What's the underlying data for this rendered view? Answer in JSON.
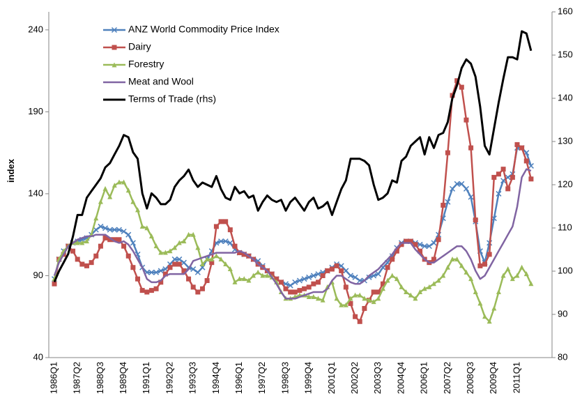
{
  "chart_data": {
    "type": "line",
    "y_label": "index",
    "categories": [
      "1986Q1",
      null,
      null,
      null,
      null,
      "1987Q2",
      null,
      null,
      null,
      null,
      "1988Q3",
      null,
      null,
      null,
      null,
      "1989Q4",
      null,
      null,
      null,
      null,
      "1991Q1",
      null,
      null,
      null,
      null,
      "1992Q2",
      null,
      null,
      null,
      null,
      "1993Q3",
      null,
      null,
      null,
      null,
      "1994Q4",
      null,
      null,
      null,
      null,
      "1996Q1",
      null,
      null,
      null,
      null,
      "1997Q2",
      null,
      null,
      null,
      null,
      "1998Q3",
      null,
      null,
      null,
      null,
      "1999Q4",
      null,
      null,
      null,
      null,
      "2001Q1",
      null,
      null,
      null,
      null,
      "2002Q2",
      null,
      null,
      null,
      null,
      "2003Q3",
      null,
      null,
      null,
      null,
      "2004Q4",
      null,
      null,
      null,
      null,
      "2006Q1",
      null,
      null,
      null,
      null,
      "2007Q2",
      null,
      null,
      null,
      null,
      "2008Q3",
      null,
      null,
      null,
      null,
      "2009Q4",
      null,
      null,
      null,
      null,
      "2011Q1",
      null,
      null,
      null
    ],
    "ylim": [
      40,
      251
    ],
    "yticks": [
      40,
      90,
      140,
      190,
      240
    ],
    "y2lim": [
      80,
      160
    ],
    "y2ticks": [
      80,
      90,
      100,
      110,
      120,
      130,
      140,
      150,
      160
    ],
    "legend": "upper-left",
    "series": [
      {
        "name": "ANZ World Commodity Price Index",
        "color": "#4f81bd",
        "marker": "x",
        "values": [
          88,
          100,
          105,
          108,
          110,
          111,
          112,
          113,
          115,
          118,
          120,
          119,
          118,
          118,
          118,
          117,
          115,
          110,
          103,
          95,
          92,
          92,
          92,
          93,
          94,
          97,
          100,
          100,
          98,
          95,
          94,
          92,
          95,
          100,
          105,
          110,
          111,
          111,
          110,
          106,
          104,
          103,
          102,
          100,
          99,
          96,
          93,
          91,
          88,
          86,
          85,
          84,
          86,
          87,
          88,
          89,
          90,
          91,
          92,
          93,
          95,
          97,
          96,
          93,
          90,
          89,
          87,
          87,
          89,
          90,
          91,
          95,
          98,
          102,
          107,
          110,
          111,
          111,
          110,
          109,
          108,
          108,
          110,
          115,
          125,
          135,
          143,
          146,
          146,
          143,
          138,
          123,
          105,
          98,
          110,
          125,
          140,
          148,
          150,
          152,
          168,
          168,
          165,
          157
        ]
      },
      {
        "name": "Dairy",
        "color": "#c0504d",
        "marker": "square",
        "values": [
          85,
          100,
          103,
          108,
          105,
          100,
          97,
          96,
          98,
          102,
          108,
          113,
          112,
          112,
          112,
          108,
          102,
          95,
          88,
          81,
          80,
          81,
          82,
          86,
          91,
          95,
          97,
          97,
          93,
          88,
          83,
          80,
          82,
          87,
          98,
          120,
          123,
          123,
          118,
          108,
          104,
          103,
          102,
          100,
          97,
          95,
          93,
          91,
          88,
          86,
          82,
          80,
          80,
          81,
          82,
          83,
          85,
          86,
          90,
          93,
          94,
          96,
          93,
          83,
          73,
          65,
          62,
          70,
          75,
          80,
          80,
          85,
          95,
          100,
          105,
          109,
          111,
          111,
          109,
          105,
          100,
          98,
          100,
          112,
          133,
          165,
          200,
          209,
          205,
          185,
          168,
          124,
          96,
          97,
          103,
          150,
          152,
          155,
          143,
          150,
          170,
          168,
          160,
          149
        ]
      },
      {
        "name": "Forestry",
        "color": "#9bbb59",
        "marker": "triangle",
        "values": [
          88,
          100,
          105,
          108,
          110,
          110,
          110,
          111,
          115,
          125,
          135,
          143,
          138,
          145,
          147,
          147,
          142,
          135,
          130,
          120,
          119,
          114,
          108,
          104,
          104,
          105,
          107,
          110,
          111,
          115,
          115,
          107,
          97,
          100,
          100,
          102,
          100,
          97,
          94,
          86,
          88,
          88,
          87,
          90,
          92,
          90,
          90,
          89,
          86,
          80,
          76,
          76,
          77,
          78,
          78,
          77,
          77,
          76,
          75,
          83,
          86,
          76,
          72,
          72,
          76,
          78,
          78,
          76,
          75,
          74,
          76,
          82,
          87,
          90,
          88,
          83,
          80,
          78,
          76,
          80,
          82,
          83,
          85,
          87,
          90,
          95,
          100,
          100,
          96,
          92,
          88,
          80,
          73,
          65,
          62,
          70,
          80,
          90,
          94,
          88,
          90,
          95,
          91,
          85
        ]
      },
      {
        "name": "Meat and Wool",
        "color": "#8064a2",
        "marker": "none",
        "values": [
          90,
          98,
          103,
          108,
          110,
          112,
          113,
          114,
          114,
          115,
          115,
          115,
          113,
          111,
          110,
          111,
          109,
          105,
          100,
          95,
          88,
          86,
          86,
          87,
          90,
          91,
          91,
          91,
          91,
          94,
          99,
          100,
          101,
          102,
          103,
          104,
          104,
          104,
          104,
          104,
          105,
          104,
          102,
          100,
          97,
          95,
          93,
          89,
          85,
          80,
          76,
          76,
          76,
          77,
          78,
          79,
          80,
          80,
          80,
          82,
          87,
          90,
          90,
          88,
          86,
          85,
          85,
          87,
          90,
          92,
          94,
          97,
          100,
          103,
          107,
          110,
          110,
          110,
          106,
          103,
          100,
          98,
          98,
          100,
          102,
          104,
          106,
          108,
          108,
          105,
          100,
          93,
          88,
          90,
          95,
          100,
          105,
          110,
          115,
          120,
          132,
          150,
          155,
          154
        ]
      },
      {
        "name": "Terms of Trade (rhs)",
        "color": "#000000",
        "marker": "none",
        "axis": "y2",
        "values": [
          97.5,
          100,
          102,
          104,
          108,
          113,
          113,
          117,
          118.5,
          120,
          121.5,
          124,
          125,
          127,
          129,
          131.5,
          131,
          127.5,
          126,
          118,
          114.5,
          118,
          117,
          115.5,
          115.5,
          116.5,
          119.5,
          121,
          122,
          123.5,
          121,
          119.5,
          120.5,
          120,
          119.5,
          122,
          119,
          117,
          116.5,
          119.5,
          118,
          118.5,
          117,
          117.5,
          114,
          116,
          117.5,
          116.5,
          116,
          116.5,
          114,
          116,
          117,
          115.5,
          114,
          116,
          117,
          114.5,
          115,
          116,
          113,
          116,
          119,
          121,
          126,
          126,
          126,
          125.5,
          124.5,
          120,
          116.5,
          117,
          118,
          121,
          120.5,
          125.5,
          126.5,
          129,
          130,
          131,
          127,
          131,
          128.5,
          131.5,
          132,
          134.5,
          140,
          143,
          147,
          149,
          148,
          145,
          138,
          129,
          127,
          133,
          139,
          144.5,
          149.5,
          149.5,
          149,
          155.5,
          155,
          151
        ]
      }
    ]
  }
}
